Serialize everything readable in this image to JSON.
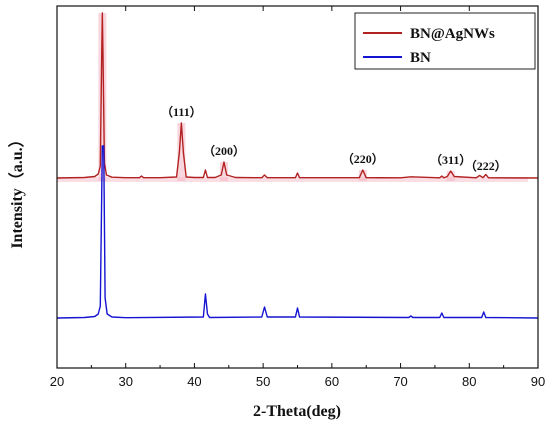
{
  "chart_data": {
    "type": "line",
    "xlabel": "2-Theta(deg)",
    "ylabel": "Intensity（a.u.）",
    "xlim": [
      20,
      90
    ],
    "xticks": [
      20,
      30,
      40,
      50,
      60,
      70,
      80,
      90
    ],
    "grid": false,
    "legend_position": "top-right",
    "series": [
      {
        "name": "BN@AgNWs",
        "color": "#b22222",
        "baseline": 0.0,
        "x": [
          20,
          24,
          25.5,
          26,
          26.3,
          26.5,
          26.6,
          26.7,
          26.9,
          27.2,
          28,
          30,
          32,
          32.3,
          32.6,
          35,
          37.4,
          37.8,
          38.1,
          38.4,
          38.8,
          40,
          41.3,
          41.6,
          41.9,
          43,
          43.9,
          44.3,
          44.7,
          46,
          49.8,
          50.2,
          50.6,
          54.7,
          55.0,
          55.3,
          60,
          64.0,
          64.5,
          65.0,
          70,
          71.5,
          75.7,
          76.0,
          76.3,
          76.8,
          77.3,
          77.8,
          81.0,
          81.5,
          82.0,
          82.4,
          82.8,
          90
        ],
        "y": [
          0,
          0.5,
          1.5,
          4,
          12,
          120,
          165,
          120,
          15,
          3,
          0.8,
          0.3,
          0.3,
          2,
          0.3,
          0.3,
          1,
          25,
          55,
          25,
          1,
          0.5,
          0.5,
          8,
          0.5,
          0.5,
          3,
          16,
          3,
          0.5,
          0.3,
          3,
          0.3,
          0.3,
          5,
          0.3,
          0.3,
          0.3,
          8,
          0.3,
          0.2,
          1.2,
          0.2,
          2,
          0.2,
          1.5,
          7,
          1.5,
          0.2,
          2.5,
          0.4,
          3.5,
          0.2,
          0
        ]
      },
      {
        "name": "BN",
        "color": "#1414d2",
        "baseline": -140,
        "x": [
          20,
          24,
          25.5,
          26,
          26.3,
          26.5,
          26.6,
          26.8,
          27.0,
          27.3,
          28,
          30,
          41.3,
          41.6,
          41.9,
          42.2,
          49.8,
          50.2,
          50.6,
          54.7,
          55.0,
          55.3,
          71.2,
          71.5,
          71.8,
          75.7,
          76.0,
          76.3,
          81.8,
          82.1,
          82.4,
          90
        ],
        "y": [
          0,
          0.5,
          1.5,
          4,
          12,
          120,
          172,
          172,
          20,
          4,
          1,
          0.3,
          1,
          24,
          4,
          0.5,
          1,
          11,
          1,
          1,
          10,
          1,
          0.5,
          2,
          0.5,
          0.5,
          5,
          0.5,
          0.5,
          6,
          0.5,
          0
        ]
      }
    ],
    "annotations": [
      {
        "text": "（111）",
        "x": 38.1,
        "y": 62
      },
      {
        "text": "（200）",
        "x": 44.3,
        "y": 23
      },
      {
        "text": "（220）",
        "x": 64.5,
        "y": 15
      },
      {
        "text": "（311）",
        "x": 77.3,
        "y": 14
      },
      {
        "text": "（222）",
        "x": 82.4,
        "y": 8
      }
    ],
    "highlight_peaks": [
      26.6,
      38.1,
      44.3,
      64.5,
      77.3
    ]
  }
}
